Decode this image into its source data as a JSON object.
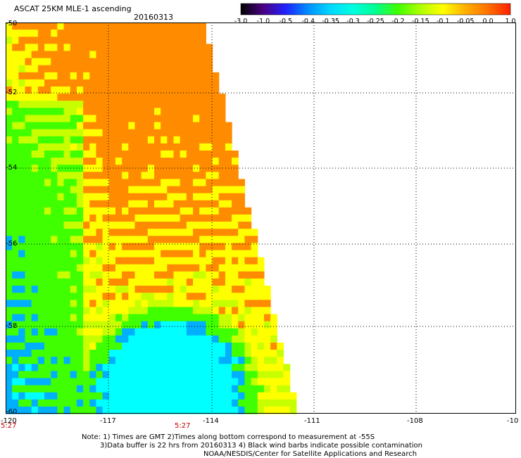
{
  "header": {
    "title": "ASCAT 25KM MLE-1 ascending",
    "date": "20160313"
  },
  "colorbar": {
    "labels": [
      "-3.0",
      "-1.0",
      "-0.5",
      "-0.4",
      "-0.35",
      "-0.3",
      "-0.25",
      "-0.2",
      "-0.15",
      "-0.1",
      "-0.05",
      "0.0",
      "1.0"
    ],
    "colors": [
      "#000000",
      "#4b0082",
      "#2020ff",
      "#0090ff",
      "#00d8ff",
      "#00ffe0",
      "#00ff90",
      "#40ff00",
      "#b0ff00",
      "#ffff00",
      "#ffb000",
      "#ff7000",
      "#ff2000"
    ]
  },
  "map": {
    "lat_labels": [
      "-50",
      "-52",
      "-54",
      "-56",
      "-58",
      "-60"
    ],
    "lon_labels": [
      "-120",
      "-117",
      "-114",
      "-111",
      "-108",
      "-10"
    ],
    "time_labels": [
      "5:27",
      "5:27"
    ],
    "colors": {
      "orange": "#ff8c00",
      "yellow": "#ffff00",
      "yellow_green": "#c8ff00",
      "green": "#40ff00",
      "cyan": "#00ffff",
      "blue": "#00b0ff"
    }
  },
  "notes": {
    "line1": "Note: 1) Times are GMT 2)Times along bottom correspond to measurement at -55S",
    "line2": "3)Data buffer is 22 hrs from 20160313 4) Black wind barbs indicate possible contamination",
    "line3": "NOAA/NESDIS/Center for Satellite Applications and Research"
  }
}
